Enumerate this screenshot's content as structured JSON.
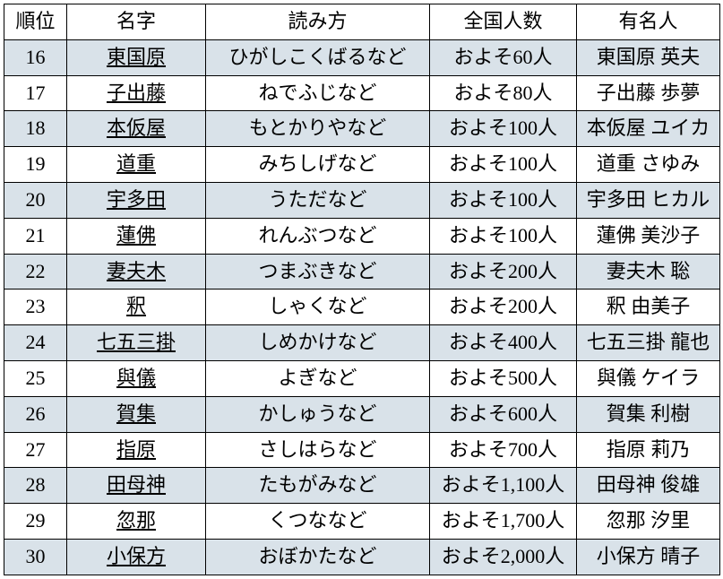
{
  "table": {
    "headers": {
      "rank": "順位",
      "surname": "名字",
      "reading": "読み方",
      "population": "全国人数",
      "famous": "有名人"
    },
    "rows": [
      {
        "rank": "16",
        "surname": "東国原",
        "reading": "ひがしこくばるなど",
        "population": "およそ60人",
        "famous": "東国原 英夫"
      },
      {
        "rank": "17",
        "surname": "子出藤",
        "reading": "ねでふじなど",
        "population": "およそ80人",
        "famous": "子出藤 歩夢"
      },
      {
        "rank": "18",
        "surname": "本仮屋",
        "reading": "もとかりやなど",
        "population": "およそ100人",
        "famous": "本仮屋 ユイカ"
      },
      {
        "rank": "19",
        "surname": "道重",
        "reading": "みちしげなど",
        "population": "およそ100人",
        "famous": "道重 さゆみ"
      },
      {
        "rank": "20",
        "surname": "宇多田",
        "reading": "うただなど",
        "population": "およそ100人",
        "famous": "宇多田 ヒカル"
      },
      {
        "rank": "21",
        "surname": "蓮佛",
        "reading": "れんぶつなど",
        "population": "およそ100人",
        "famous": "蓮佛 美沙子"
      },
      {
        "rank": "22",
        "surname": "妻夫木",
        "reading": "つまぶきなど",
        "population": "およそ200人",
        "famous": "妻夫木 聡"
      },
      {
        "rank": "23",
        "surname": "釈",
        "reading": "しゃくなど",
        "population": "およそ200人",
        "famous": "釈 由美子"
      },
      {
        "rank": "24",
        "surname": "七五三掛",
        "reading": "しめかけなど",
        "population": "およそ400人",
        "famous": "七五三掛 龍也"
      },
      {
        "rank": "25",
        "surname": "與儀",
        "reading": "よぎなど",
        "population": "およそ500人",
        "famous": "與儀 ケイラ"
      },
      {
        "rank": "26",
        "surname": "賀集",
        "reading": "かしゅうなど",
        "population": "およそ600人",
        "famous": "賀集 利樹"
      },
      {
        "rank": "27",
        "surname": "指原",
        "reading": "さしはらなど",
        "population": "およそ700人",
        "famous": "指原 莉乃"
      },
      {
        "rank": "28",
        "surname": "田母神",
        "reading": "たもがみなど",
        "population": "およそ1,100人",
        "famous": "田母神 俊雄"
      },
      {
        "rank": "29",
        "surname": "忽那",
        "reading": "くつななど",
        "population": "およそ1,700人",
        "famous": "忽那 汐里"
      },
      {
        "rank": "30",
        "surname": "小保方",
        "reading": "おぼかたなど",
        "population": "およそ2,000人",
        "famous": "小保方 晴子"
      }
    ],
    "colors": {
      "even_row_bg": "#d9e2e9",
      "odd_row_bg": "#ffffff",
      "border": "#000000",
      "text": "#000000"
    },
    "font": {
      "family": "Mincho (serif)",
      "size_pt": 16
    }
  }
}
